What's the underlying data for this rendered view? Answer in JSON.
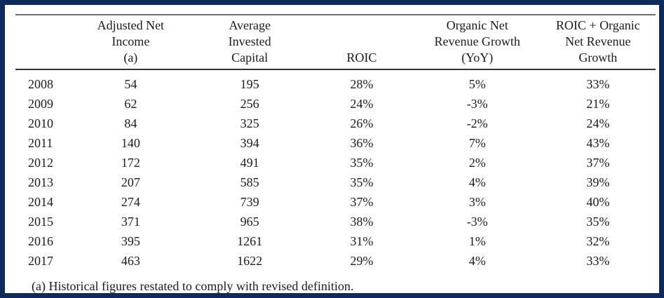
{
  "frame": {
    "border_color": "#0e2a5c",
    "background_color": "#ffffff",
    "rule_top_color": "#6e6e6e",
    "rule_header_color": "#333333"
  },
  "table": {
    "column_keys": [
      "year",
      "adjusted_net_income",
      "average_invested_capital",
      "roic",
      "organic_net_revenue_growth",
      "roic_plus_organic_growth"
    ],
    "headers": [
      "",
      "Adjusted Net\nIncome\n(a)",
      "Average\nInvested\nCapital",
      "ROIC",
      "Organic Net\nRevenue Growth\n(YoY)",
      "ROIC + Organic\nNet Revenue\nGrowth"
    ],
    "rows": [
      [
        "2008",
        "54",
        "195",
        "28%",
        "5%",
        "33%"
      ],
      [
        "2009",
        "62",
        "256",
        "24%",
        "-3%",
        "21%"
      ],
      [
        "2010",
        "84",
        "325",
        "26%",
        "-2%",
        "24%"
      ],
      [
        "2011",
        "140",
        "394",
        "36%",
        "7%",
        "43%"
      ],
      [
        "2012",
        "172",
        "491",
        "35%",
        "2%",
        "37%"
      ],
      [
        "2013",
        "207",
        "585",
        "35%",
        "4%",
        "39%"
      ],
      [
        "2014",
        "274",
        "739",
        "37%",
        "3%",
        "40%"
      ],
      [
        "2015",
        "371",
        "965",
        "38%",
        "-3%",
        "35%"
      ],
      [
        "2016",
        "395",
        "1261",
        "31%",
        "1%",
        "32%"
      ],
      [
        "2017",
        "463",
        "1622",
        "29%",
        "4%",
        "33%"
      ]
    ]
  },
  "footnote": "(a) Historical figures restated to comply with revised definition."
}
